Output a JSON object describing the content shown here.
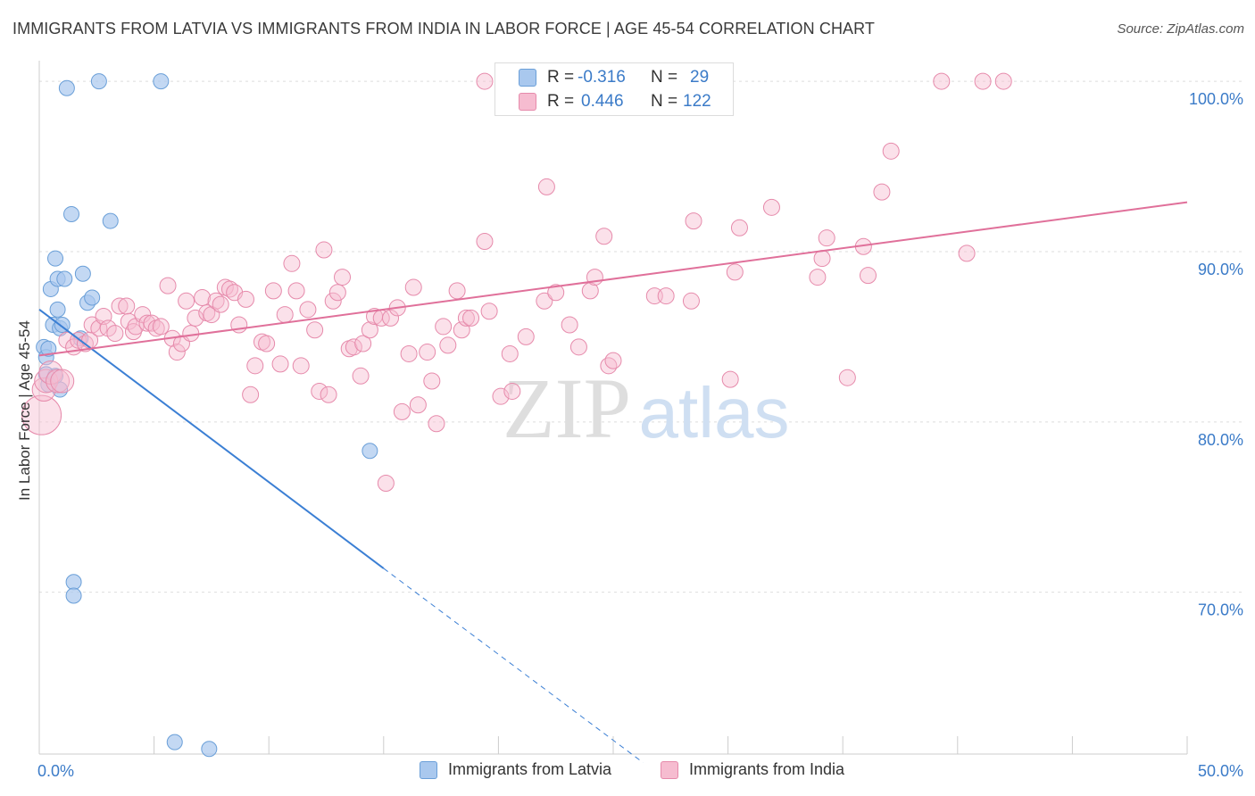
{
  "title": "IMMIGRANTS FROM LATVIA VS IMMIGRANTS FROM INDIA IN LABOR FORCE | AGE 45-54 CORRELATION CHART",
  "source": "Source: ZipAtlas.com",
  "watermark": {
    "zip": "ZIP",
    "atlas": "atlas"
  },
  "colors": {
    "latvia_fill": "#a9c8ee",
    "latvia_stroke": "#6a9fd8",
    "latvia_line": "#3b7fd4",
    "india_fill": "#f6bcd0",
    "india_stroke": "#e68aab",
    "india_line": "#e0709a",
    "axis_text": "#3b7bc8",
    "grid": "#dddddd"
  },
  "stats": [
    {
      "r_label": "R =",
      "r_value": "-0.316",
      "n_label": "N =",
      "n_value": "29"
    },
    {
      "r_label": "R =",
      "r_value": "0.446",
      "n_label": "N =",
      "n_value": "122"
    }
  ],
  "chart_data": {
    "type": "scatter",
    "title": "IMMIGRANTS FROM LATVIA VS IMMIGRANTS FROM INDIA IN LABOR FORCE | AGE 45-54 CORRELATION CHART",
    "xlabel": "",
    "ylabel": "In Labor Force | Age 45-54",
    "xlim": [
      0,
      50
    ],
    "ylim": [
      60.5,
      101
    ],
    "x_tick_labels": [
      "0.0%",
      "50.0%"
    ],
    "y_ticks": [
      70,
      80,
      90,
      100
    ],
    "y_tick_labels": [
      "70.0%",
      "80.0%",
      "90.0%",
      "100.0%"
    ],
    "grid": true,
    "legend": [
      "Immigrants from Latvia",
      "Immigrants from India"
    ],
    "series": [
      {
        "name": "Immigrants from Latvia",
        "points": [
          [
            0.2,
            84.4
          ],
          [
            0.3,
            83.8
          ],
          [
            0.4,
            84.3
          ],
          [
            0.4,
            82.2
          ],
          [
            0.5,
            87.8
          ],
          [
            0.6,
            85.7
          ],
          [
            0.7,
            89.6
          ],
          [
            0.8,
            88.4
          ],
          [
            0.8,
            86.6
          ],
          [
            0.9,
            85.5
          ],
          [
            0.9,
            81.9
          ],
          [
            1.0,
            85.7
          ],
          [
            1.1,
            88.4
          ],
          [
            1.2,
            99.6
          ],
          [
            1.4,
            92.2
          ],
          [
            1.5,
            70.6
          ],
          [
            1.5,
            69.8
          ],
          [
            1.8,
            84.9
          ],
          [
            1.9,
            88.7
          ],
          [
            2.1,
            87.0
          ],
          [
            2.3,
            87.3
          ],
          [
            2.6,
            100.0
          ],
          [
            3.1,
            91.8
          ],
          [
            5.3,
            100.0
          ],
          [
            5.9,
            61.2
          ],
          [
            7.4,
            60.8
          ],
          [
            14.4,
            78.3
          ],
          [
            0.3,
            82.8
          ],
          [
            0.7,
            82.7
          ]
        ],
        "trend": {
          "x": [
            0,
            15
          ],
          "y": [
            86.6,
            71.4
          ]
        },
        "trend_extension": {
          "x": [
            15,
            26.3
          ],
          "y": [
            71.4,
            60.0
          ]
        }
      },
      {
        "name": "Immigrants from India",
        "points": [
          [
            0.1,
            80.4
          ],
          [
            0.2,
            81.9
          ],
          [
            0.3,
            82.4
          ],
          [
            0.5,
            82.9
          ],
          [
            0.8,
            82.4
          ],
          [
            1.0,
            82.4
          ],
          [
            1.2,
            84.8
          ],
          [
            1.5,
            84.4
          ],
          [
            1.7,
            84.8
          ],
          [
            2.0,
            84.6
          ],
          [
            2.2,
            84.8
          ],
          [
            2.3,
            85.7
          ],
          [
            2.6,
            85.5
          ],
          [
            2.8,
            86.2
          ],
          [
            3.0,
            85.5
          ],
          [
            3.3,
            85.2
          ],
          [
            3.5,
            86.8
          ],
          [
            3.8,
            86.8
          ],
          [
            3.9,
            85.9
          ],
          [
            4.1,
            85.3
          ],
          [
            4.2,
            85.6
          ],
          [
            4.5,
            86.3
          ],
          [
            4.7,
            85.8
          ],
          [
            4.9,
            85.8
          ],
          [
            5.1,
            85.5
          ],
          [
            5.3,
            85.6
          ],
          [
            5.6,
            88.0
          ],
          [
            5.8,
            84.9
          ],
          [
            6.0,
            84.1
          ],
          [
            6.2,
            84.6
          ],
          [
            6.4,
            87.1
          ],
          [
            6.6,
            85.2
          ],
          [
            6.8,
            86.1
          ],
          [
            7.1,
            87.3
          ],
          [
            7.3,
            86.4
          ],
          [
            7.5,
            86.3
          ],
          [
            7.7,
            87.1
          ],
          [
            7.9,
            86.9
          ],
          [
            8.1,
            87.9
          ],
          [
            8.3,
            87.8
          ],
          [
            8.5,
            87.6
          ],
          [
            8.7,
            85.7
          ],
          [
            9.0,
            87.2
          ],
          [
            9.2,
            81.6
          ],
          [
            9.4,
            83.3
          ],
          [
            9.7,
            84.7
          ],
          [
            9.9,
            84.6
          ],
          [
            10.2,
            87.7
          ],
          [
            10.5,
            83.4
          ],
          [
            10.7,
            86.3
          ],
          [
            11.0,
            89.3
          ],
          [
            11.2,
            87.7
          ],
          [
            11.4,
            83.3
          ],
          [
            11.7,
            86.6
          ],
          [
            12.0,
            85.4
          ],
          [
            12.2,
            81.8
          ],
          [
            12.4,
            90.1
          ],
          [
            12.6,
            81.6
          ],
          [
            12.8,
            87.1
          ],
          [
            13.0,
            87.6
          ],
          [
            13.2,
            88.5
          ],
          [
            13.5,
            84.3
          ],
          [
            13.7,
            84.4
          ],
          [
            14.0,
            82.7
          ],
          [
            14.1,
            84.6
          ],
          [
            14.4,
            85.4
          ],
          [
            14.6,
            86.2
          ],
          [
            14.9,
            86.1
          ],
          [
            15.1,
            76.4
          ],
          [
            15.3,
            86.1
          ],
          [
            15.6,
            86.7
          ],
          [
            15.8,
            80.6
          ],
          [
            16.1,
            84.0
          ],
          [
            16.3,
            87.9
          ],
          [
            16.5,
            81.0
          ],
          [
            16.9,
            84.1
          ],
          [
            17.1,
            82.4
          ],
          [
            17.3,
            79.9
          ],
          [
            17.6,
            85.6
          ],
          [
            17.8,
            84.5
          ],
          [
            18.2,
            87.7
          ],
          [
            18.4,
            85.4
          ],
          [
            18.6,
            86.1
          ],
          [
            18.8,
            86.1
          ],
          [
            19.4,
            100.0
          ],
          [
            19.4,
            90.6
          ],
          [
            19.6,
            86.5
          ],
          [
            20.1,
            81.5
          ],
          [
            20.5,
            84.0
          ],
          [
            20.6,
            81.8
          ],
          [
            21.2,
            85.0
          ],
          [
            22.0,
            87.1
          ],
          [
            22.1,
            93.8
          ],
          [
            22.5,
            87.6
          ],
          [
            23.1,
            85.7
          ],
          [
            23.5,
            84.4
          ],
          [
            24.0,
            87.7
          ],
          [
            24.2,
            88.5
          ],
          [
            24.6,
            90.9
          ],
          [
            24.8,
            83.3
          ],
          [
            25.0,
            83.6
          ],
          [
            26.8,
            87.4
          ],
          [
            27.3,
            87.4
          ],
          [
            28.4,
            87.1
          ],
          [
            28.5,
            91.8
          ],
          [
            30.1,
            82.5
          ],
          [
            30.3,
            88.8
          ],
          [
            30.5,
            91.4
          ],
          [
            31.9,
            92.6
          ],
          [
            33.9,
            88.5
          ],
          [
            34.1,
            89.6
          ],
          [
            34.3,
            90.8
          ],
          [
            35.2,
            82.6
          ],
          [
            35.9,
            90.3
          ],
          [
            36.1,
            88.6
          ],
          [
            36.7,
            93.5
          ],
          [
            37.1,
            95.9
          ],
          [
            39.3,
            100.0
          ],
          [
            40.4,
            89.9
          ],
          [
            41.1,
            100.0
          ],
          [
            42.0,
            100.0
          ]
        ],
        "trend": {
          "x": [
            0,
            50
          ],
          "y": [
            83.9,
            92.9
          ]
        }
      }
    ]
  }
}
